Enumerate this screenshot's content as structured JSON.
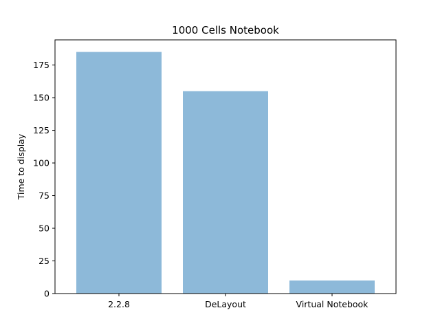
{
  "chart_data": {
    "type": "bar",
    "title": "1000 Cells Notebook",
    "xlabel": "",
    "ylabel": "Time to display",
    "categories": [
      "2.2.8",
      "DeLayout",
      "Virtual Notebook"
    ],
    "values": [
      185,
      155,
      10
    ],
    "ylim": [
      0,
      194.25
    ],
    "yticks": [
      0,
      25,
      50,
      75,
      100,
      125,
      150,
      175
    ],
    "bar_color": "#8db9d9",
    "grid": false,
    "legend": "none"
  }
}
